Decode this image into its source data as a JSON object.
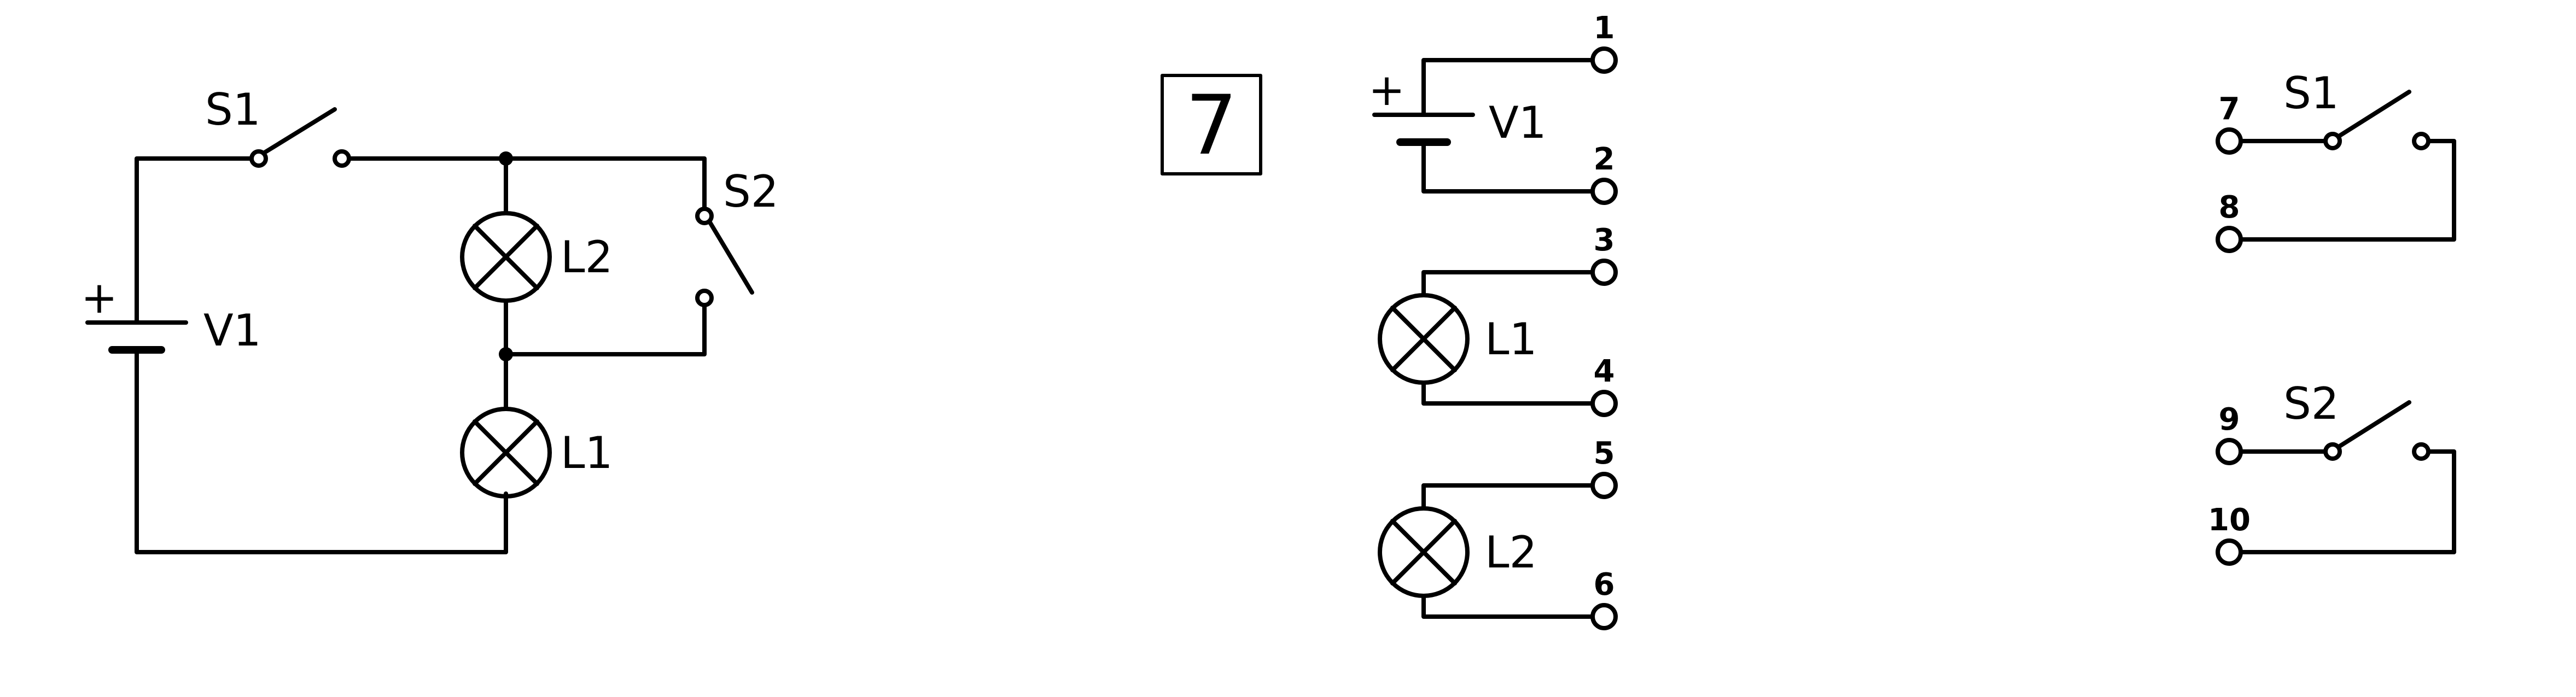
{
  "schematic": {
    "battery_label": "V1",
    "battery_polarity": "+",
    "switch1_label": "S1",
    "switch2_label": "S2",
    "lamp_top_label": "L2",
    "lamp_bottom_label": "L1"
  },
  "task_number": "7",
  "components": {
    "battery": {
      "label": "V1",
      "polarity": "+",
      "terminal_a": "1",
      "terminal_b": "2"
    },
    "lamp1": {
      "label": "L1",
      "terminal_a": "3",
      "terminal_b": "4"
    },
    "lamp2": {
      "label": "L2",
      "terminal_a": "5",
      "terminal_b": "6"
    },
    "switch1": {
      "label": "S1",
      "terminal_a": "7",
      "terminal_b": "8"
    },
    "switch2": {
      "label": "S2",
      "terminal_a": "9",
      "terminal_b": "10"
    }
  },
  "colors": {
    "stroke": "#000000",
    "background": "#ffffff"
  }
}
